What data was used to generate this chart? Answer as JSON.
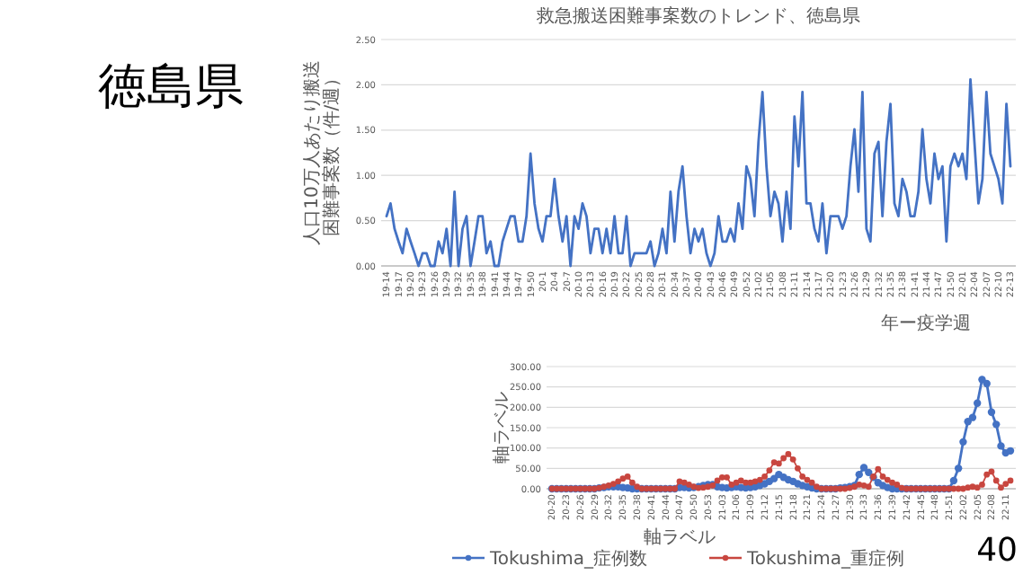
{
  "chart_data": [
    {
      "type": "other",
      "title": "徳島県",
      "annotations": [
        "40"
      ]
    },
    {
      "type": "line",
      "title": "救急搬送困難事案数のトレンド、徳島県",
      "xlabel": "年ー疫学週",
      "ylabel": "人口10万人あたり搬送困難事案数（件/週）",
      "grid": "y",
      "ylim": [
        0,
        2.5
      ],
      "yticks": [
        {
          "value": 0,
          "label": "0.00"
        },
        {
          "value": 0.5,
          "label": "0.50"
        },
        {
          "value": 1,
          "label": "1.00"
        },
        {
          "value": 1.5,
          "label": "1.50"
        },
        {
          "value": 2,
          "label": "2.00"
        },
        {
          "value": 2.5,
          "label": "2.50"
        }
      ],
      "categories": [
        "19-14",
        null,
        null,
        "19-17",
        null,
        null,
        "19-20",
        null,
        null,
        "19-23",
        null,
        null,
        "19-26",
        null,
        null,
        "19-29",
        null,
        null,
        "19-32",
        null,
        null,
        "19-35",
        null,
        null,
        "19-38",
        null,
        null,
        "19-41",
        null,
        null,
        "19-44",
        null,
        null,
        "19-47",
        null,
        null,
        "19-50",
        null,
        null,
        "20-1",
        null,
        null,
        "20-4",
        null,
        null,
        "20-7",
        null,
        null,
        "20-10",
        null,
        null,
        "20-13",
        null,
        null,
        "20-16",
        null,
        null,
        "20-19",
        null,
        null,
        "20-22",
        null,
        null,
        "20-25",
        null,
        null,
        "20-28",
        null,
        null,
        "20-31",
        null,
        null,
        "20-34",
        null,
        null,
        "20-37",
        null,
        null,
        "20-40",
        null,
        null,
        "20-43",
        null,
        null,
        "20-46",
        null,
        null,
        "20-49",
        null,
        null,
        "20-52",
        null,
        null,
        "21-02",
        null,
        null,
        "21-05",
        null,
        null,
        "21-08",
        null,
        null,
        "21-11",
        null,
        null,
        "21-14",
        null,
        null,
        "21-17",
        null,
        null,
        "21-20",
        null,
        null,
        "21-23",
        null,
        null,
        "21-26",
        null,
        null,
        "21-29",
        null,
        null,
        "21-32",
        null,
        null,
        "21-35",
        null,
        null,
        "21-38",
        null,
        null,
        "21-41",
        null,
        null,
        "21-44",
        null,
        null,
        "21-47",
        null,
        null,
        "21-50",
        null,
        null,
        "22-01",
        null,
        null,
        "22-04",
        null,
        null,
        "22-07",
        null,
        null,
        "22-10",
        null,
        null,
        "22-13"
      ],
      "series": [
        {
          "color": "#4472c4",
          "values": [
            0.55,
            0.69,
            0.41,
            0.27,
            0.14,
            0.41,
            0.27,
            0.14,
            0,
            0.14,
            0.14,
            0,
            0,
            0.27,
            0.14,
            0.41,
            0,
            0.82,
            0,
            0.41,
            0.55,
            0,
            0.27,
            0.55,
            0.55,
            0.14,
            0.27,
            0,
            0,
            0.27,
            0.41,
            0.55,
            0.55,
            0.27,
            0.27,
            0.55,
            1.24,
            0.69,
            0.41,
            0.27,
            0.55,
            0.55,
            0.96,
            0.55,
            0.27,
            0.55,
            0,
            0.55,
            0.41,
            0.69,
            0.55,
            0.14,
            0.41,
            0.41,
            0.14,
            0.41,
            0.14,
            0.55,
            0.14,
            0.14,
            0.55,
            0,
            0.14,
            0.14,
            0.14,
            0.14,
            0.27,
            0,
            0.14,
            0.41,
            0.14,
            0.82,
            0.27,
            0.82,
            1.1,
            0.55,
            0.14,
            0.41,
            0.27,
            0.41,
            0.14,
            0,
            0.14,
            0.55,
            0.27,
            0.27,
            0.41,
            0.27,
            0.69,
            0.41,
            1.1,
            0.96,
            0.55,
            1.37,
            1.92,
            1.1,
            0.55,
            0.82,
            0.69,
            0.27,
            0.82,
            0.41,
            1.65,
            1.1,
            1.92,
            0.69,
            0.69,
            0.41,
            0.27,
            0.69,
            0.14,
            0.55,
            0.55,
            0.55,
            0.41,
            0.55,
            1.1,
            1.51,
            0.82,
            1.92,
            0.41,
            0.27,
            1.24,
            1.37,
            0.55,
            1.37,
            1.79,
            0.69,
            0.55,
            0.96,
            0.82,
            0.55,
            0.55,
            0.82,
            1.51,
            0.96,
            0.69,
            1.24,
            0.96,
            1.1,
            0.27,
            1.1,
            1.24,
            1.1,
            1.24,
            0.96,
            2.06,
            1.37,
            0.69,
            0.96,
            1.92,
            1.24,
            1.1,
            0.96,
            0.69,
            1.79,
            1.1
          ]
        }
      ]
    },
    {
      "type": "line",
      "xlabel": "軸ラベル",
      "ylabel": "軸ラベル",
      "grid": "y",
      "legend": "bottom",
      "marker": "circle",
      "ylim": [
        0,
        300
      ],
      "yticks": [
        {
          "value": 0,
          "label": "0.00"
        },
        {
          "value": 50,
          "label": "50.00"
        },
        {
          "value": 100,
          "label": "100.00"
        },
        {
          "value": 150,
          "label": "150.00"
        },
        {
          "value": 200,
          "label": "200.00"
        },
        {
          "value": 250,
          "label": "250.00"
        },
        {
          "value": 300,
          "label": "300.00"
        }
      ],
      "categories": [
        "20-20",
        null,
        null,
        "20-23",
        null,
        null,
        "20-26",
        null,
        null,
        "20-29",
        null,
        null,
        "20-32",
        null,
        null,
        "20-35",
        null,
        null,
        "20-38",
        null,
        null,
        "20-41",
        null,
        null,
        "20-44",
        null,
        null,
        "20-47",
        null,
        null,
        "20-50",
        null,
        null,
        "20-53",
        null,
        null,
        "21-03",
        null,
        null,
        "21-06",
        null,
        null,
        "21-09",
        null,
        null,
        "21-12",
        null,
        null,
        "21-15",
        null,
        null,
        "21-18",
        null,
        null,
        "21-21",
        null,
        null,
        "21-24",
        null,
        null,
        "21-27",
        null,
        null,
        "21-30",
        null,
        null,
        "21-33",
        null,
        null,
        "21-36",
        null,
        null,
        "21-39",
        null,
        null,
        "21-42",
        null,
        null,
        "21-45",
        null,
        null,
        "21-48",
        null,
        null,
        "21-51",
        null,
        null,
        "22-02",
        null,
        null,
        "22-05",
        null,
        null,
        "22-08",
        null,
        null,
        "22-11",
        null
      ],
      "series": [
        {
          "name": "Tokushima_症例数",
          "color": "#4472c4",
          "values": [
            0,
            0,
            0,
            0,
            0,
            0,
            0,
            0,
            0,
            0,
            2,
            3,
            5,
            5,
            5,
            3,
            2,
            0,
            0,
            0,
            0,
            0,
            0,
            0,
            0,
            0,
            0,
            3,
            3,
            2,
            3,
            5,
            8,
            10,
            10,
            5,
            3,
            2,
            3,
            5,
            3,
            2,
            3,
            5,
            8,
            12,
            18,
            25,
            35,
            28,
            22,
            18,
            12,
            8,
            5,
            2,
            0,
            0,
            0,
            0,
            0,
            2,
            3,
            5,
            8,
            35,
            52,
            40,
            28,
            15,
            8,
            3,
            0,
            0,
            0,
            0,
            0,
            0,
            0,
            0,
            0,
            0,
            0,
            0,
            0,
            20,
            50,
            115,
            165,
            175,
            210,
            268,
            258,
            188,
            158,
            105,
            88,
            93
          ]
        },
        {
          "name": "Tokushima_重症例",
          "color": "#c8463f",
          "values": [
            0,
            0,
            0,
            0,
            0,
            0,
            0,
            0,
            0,
            0,
            2,
            5,
            8,
            12,
            18,
            25,
            30,
            15,
            5,
            0,
            0,
            0,
            0,
            0,
            0,
            0,
            0,
            18,
            15,
            10,
            5,
            2,
            3,
            5,
            8,
            20,
            28,
            28,
            10,
            15,
            20,
            15,
            15,
            18,
            22,
            30,
            45,
            65,
            62,
            75,
            85,
            72,
            50,
            30,
            22,
            15,
            5,
            0,
            0,
            0,
            0,
            0,
            0,
            2,
            5,
            10,
            8,
            5,
            30,
            48,
            30,
            22,
            15,
            10,
            2,
            0,
            0,
            0,
            0,
            0,
            0,
            0,
            0,
            0,
            0,
            0,
            0,
            0,
            3,
            5,
            3,
            10,
            35,
            42,
            20,
            3,
            12,
            20
          ]
        }
      ]
    }
  ]
}
